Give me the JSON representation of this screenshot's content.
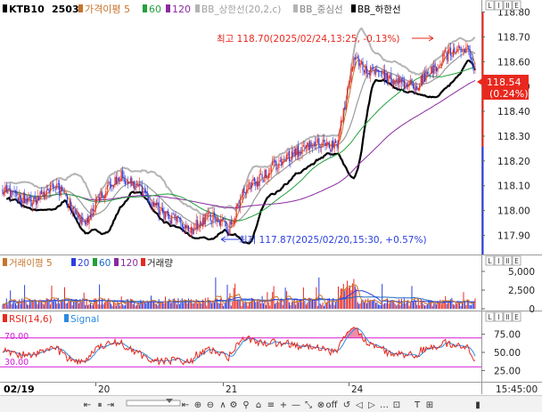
{
  "legend": {
    "symbol": "KTB10",
    "code": "2503",
    "ma": "가격이평 5",
    "ma60": "60",
    "ma120": "120",
    "bb_upper": "BB_상한선(20,2,c)",
    "bb_mid": "BB_중심선",
    "bb_lower": "BB_하한선"
  },
  "annotations": {
    "high": "최고 118.70(2025/02/24,13:25, -0.13%)",
    "low": "최저 117.87(2025/02/20,15:30, +0.57%)"
  },
  "price_tag": {
    "value": "118.54",
    "change": "(0.24%)"
  },
  "volume_legend": {
    "ma": "거래이평 5",
    "p20": "20",
    "p60": "60",
    "p120": "120",
    "vol": "거래량"
  },
  "rsi_legend": {
    "rsi": "RSI(14,6)",
    "signal": "Signal"
  },
  "rsi_levels": {
    "upper": "70.00",
    "lower": "30.00"
  },
  "x_axis": {
    "start": "02/19",
    "d20": "20",
    "d21": "21",
    "d24": "24",
    "end": "15:45:00"
  },
  "panel_buttons": [
    "L",
    "I",
    "II",
    "E"
  ],
  "toolbar": [
    "⇤",
    "⏸",
    "⇥",
    "⇤",
    "⊕",
    "⊖",
    "∧",
    "⚙",
    "⚲",
    "⌂",
    "≡",
    "+",
    "—",
    "⤡",
    "⊗",
    "off",
    "↺",
    "◁",
    "▷",
    "…",
    "⊡",
    "T",
    "⊞",
    "▮"
  ],
  "colors": {
    "up": "#e8281e",
    "down": "#2b3fe0",
    "bb": "#b4b4b4",
    "ma5": "#c8742a",
    "ma60": "#23a03c",
    "ma120": "#8a2aa0",
    "lower": "#000000",
    "rsi_band": "#d61ad6"
  },
  "chart_data": [
    {
      "type": "candlestick",
      "name": "KTB10 2503",
      "y_ticks": [
        118.8,
        118.7,
        118.6,
        118.5,
        118.4,
        118.3,
        118.2,
        118.1,
        118.0,
        117.9
      ],
      "ylim": [
        117.83,
        118.82
      ],
      "high": 118.7,
      "low": 117.87,
      "last": 118.54,
      "overlays": [
        "가격이평 5",
        "60",
        "120",
        "BB_상한선(20,2,c)",
        "BB_중심선",
        "BB_하한선"
      ]
    },
    {
      "type": "bar",
      "name": "거래량",
      "y_ticks": [
        5000,
        2500,
        0
      ],
      "ylim": [
        0,
        5600
      ]
    },
    {
      "type": "line",
      "name": "RSI(14,6)",
      "y_ticks": [
        75.0,
        50.0,
        25.0
      ],
      "ylim": [
        12,
        88
      ],
      "levels": [
        70,
        30
      ]
    }
  ]
}
